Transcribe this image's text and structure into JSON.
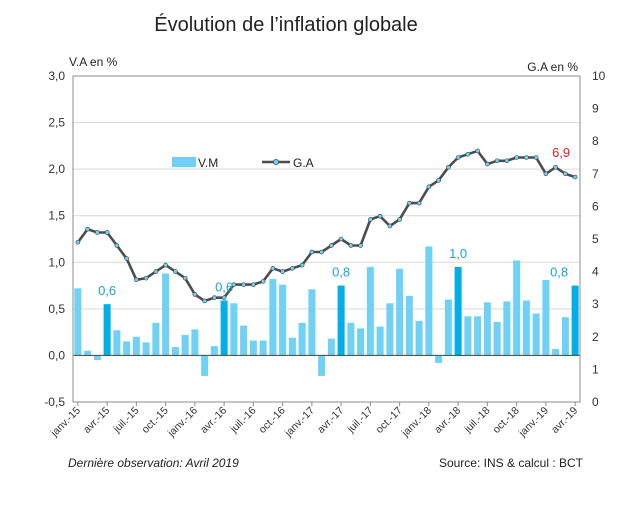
{
  "chart_data": {
    "type": "bar+line",
    "title": "Évolution de l’inflation globale",
    "y_left_label": "V.A en %",
    "y_right_label": "G.A en %",
    "ylim_left": [
      -0.5,
      3.0
    ],
    "ylim_right": [
      0,
      10
    ],
    "y_left_ticks": [
      "-0,5",
      "0,0",
      "0,5",
      "1,0",
      "1,5",
      "2,0",
      "2,5",
      "3,0"
    ],
    "y_right_ticks": [
      "0",
      "1",
      "2",
      "3",
      "4",
      "5",
      "6",
      "7",
      "8",
      "9",
      "10"
    ],
    "x_tick_labels": [
      "janv.-15",
      "avr.-15",
      "juil.-15",
      "oct.-15",
      "janv.-16",
      "avr.-16",
      "juil.-16",
      "oct.-16",
      "janv.-17",
      "avr.-17",
      "juil.-17",
      "oct.-17",
      "janv.-18",
      "avr.-18",
      "juil.-18",
      "oct.-18",
      "janv.-19",
      "avr.-19"
    ],
    "months": [
      "janv.-15",
      "févr.-15",
      "mars-15",
      "avr.-15",
      "mai-15",
      "juin-15",
      "juil.-15",
      "août-15",
      "sept.-15",
      "oct.-15",
      "nov.-15",
      "déc.-15",
      "janv.-16",
      "févr.-16",
      "mars-16",
      "avr.-16",
      "mai-16",
      "juin-16",
      "juil.-16",
      "août-16",
      "sept.-16",
      "oct.-16",
      "nov.-16",
      "déc.-16",
      "janv.-17",
      "févr.-17",
      "mars-17",
      "avr.-17",
      "mai-17",
      "juin-17",
      "juil.-17",
      "août-17",
      "sept.-17",
      "oct.-17",
      "nov.-17",
      "déc.-17",
      "janv.-18",
      "févr.-18",
      "mars-18",
      "avr.-18",
      "mai-18",
      "juin-18",
      "juil.-18",
      "août-18",
      "sept.-18",
      "oct.-18",
      "nov.-18",
      "déc.-18",
      "janv.-19",
      "févr.-19",
      "mars-19",
      "avr.-19"
    ],
    "series": [
      {
        "name": "V.M",
        "kind": "bar",
        "axis": "left",
        "color": "#6fd1f5",
        "highlight_color": "#00aee8",
        "highlight_indices": [
          3,
          15,
          27,
          39,
          51
        ],
        "values": [
          0.72,
          0.05,
          -0.05,
          0.55,
          0.27,
          0.15,
          0.2,
          0.14,
          0.35,
          0.88,
          0.09,
          0.22,
          0.28,
          -0.22,
          0.1,
          0.59,
          0.56,
          0.32,
          0.16,
          0.16,
          0.82,
          0.76,
          0.19,
          0.35,
          0.71,
          -0.22,
          0.18,
          0.75,
          0.35,
          0.29,
          0.95,
          0.31,
          0.56,
          0.93,
          0.64,
          0.37,
          1.17,
          -0.08,
          0.6,
          0.95,
          0.42,
          0.42,
          0.57,
          0.36,
          0.58,
          1.02,
          0.59,
          0.45,
          0.81,
          0.07,
          0.41,
          0.75
        ]
      },
      {
        "name": "G.A",
        "kind": "line",
        "axis": "right",
        "color": "#4d4d4d",
        "marker_color": "#6fd1f5",
        "values": [
          4.9,
          5.3,
          5.2,
          5.2,
          4.8,
          4.4,
          3.75,
          3.8,
          4.0,
          4.2,
          4.0,
          3.8,
          3.3,
          3.1,
          3.2,
          3.2,
          3.6,
          3.6,
          3.6,
          3.7,
          4.1,
          4.0,
          4.1,
          4.2,
          4.6,
          4.6,
          4.8,
          5.0,
          4.8,
          4.8,
          5.6,
          5.7,
          5.4,
          5.6,
          6.1,
          6.1,
          6.6,
          6.8,
          7.2,
          7.5,
          7.6,
          7.7,
          7.3,
          7.4,
          7.4,
          7.5,
          7.5,
          7.5,
          7.0,
          7.2,
          7.0,
          6.9
        ]
      }
    ],
    "data_labels": [
      {
        "index": 3,
        "text": "0,6",
        "series": "V.M",
        "color": "#1aa3d9"
      },
      {
        "index": 15,
        "text": "0,6",
        "series": "V.M",
        "color": "#1aa3d9"
      },
      {
        "index": 27,
        "text": "0,8",
        "series": "V.M",
        "color": "#1aa3d9"
      },
      {
        "index": 39,
        "text": "1,0",
        "series": "V.M",
        "color": "#1aa3d9"
      },
      {
        "index": 51,
        "text": "0,8",
        "series": "V.M",
        "color": "#1aa3d9"
      },
      {
        "index": 51,
        "text": "6,9",
        "series": "G.A",
        "color": "#e41e1e"
      }
    ],
    "footnote": "Dernière observation: Avril 2019",
    "source": "Source: INS & calcul : BCT",
    "legend_placement": "upper-middle",
    "grid": "horizontal"
  }
}
